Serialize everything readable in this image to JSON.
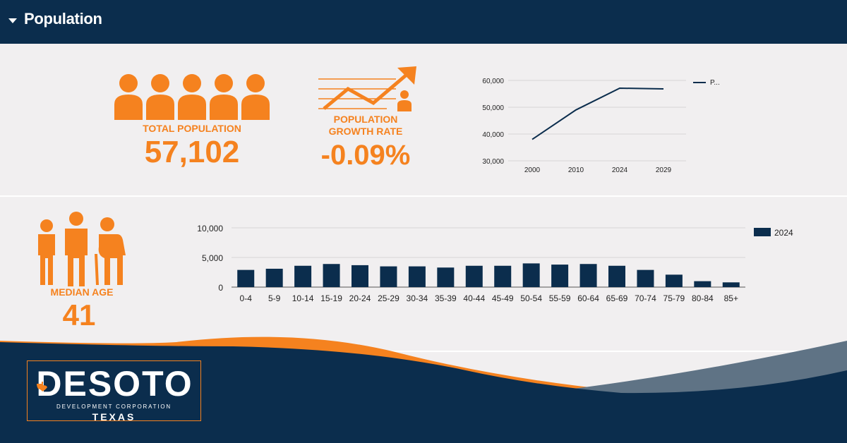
{
  "header": {
    "title": "Population"
  },
  "stats": {
    "total_population": {
      "label": "TOTAL POPULATION",
      "value": "57,102"
    },
    "growth_rate": {
      "label_line1": "POPULATION",
      "label_line2": "GROWTH RATE",
      "value": "-0.09%"
    },
    "median_age": {
      "label": "MEDIAN AGE",
      "value": "41"
    }
  },
  "colors": {
    "navy": "#0b2d4d",
    "orange": "#f5821f",
    "panel": "#f1eff0"
  },
  "icons": [
    "people-group-icon",
    "growth-trend-icon",
    "age-figures-icon",
    "dropdown-caret-icon",
    "texas-star-icon"
  ],
  "logo": {
    "word": "DESOTO",
    "sub": "DEVELOPMENT CORPORATION",
    "state": "TEXAS"
  },
  "chart_data": [
    {
      "type": "line",
      "x": [
        "2000",
        "2010",
        "2024",
        "2029"
      ],
      "series": [
        {
          "name": "P...",
          "values": [
            38000,
            49000,
            57102,
            56850
          ]
        }
      ],
      "yticks": [
        "30,000",
        "40,000",
        "50,000",
        "60,000"
      ],
      "ylim": [
        30000,
        60000
      ],
      "grid": true,
      "legend": "top-right"
    },
    {
      "type": "bar",
      "categories": [
        "0-4",
        "5-9",
        "10-14",
        "15-19",
        "20-24",
        "25-29",
        "30-34",
        "35-39",
        "40-44",
        "45-49",
        "50-54",
        "55-59",
        "60-64",
        "65-69",
        "70-74",
        "75-79",
        "80-84",
        "85+"
      ],
      "series": [
        {
          "name": "2024",
          "values": [
            2900,
            3100,
            3600,
            3900,
            3700,
            3500,
            3500,
            3300,
            3600,
            3600,
            4000,
            3800,
            3900,
            3600,
            2900,
            2100,
            1000,
            800
          ]
        }
      ],
      "yticks": [
        "0",
        "5,000",
        "10,000"
      ],
      "ylim": [
        0,
        10000
      ],
      "grid": true,
      "legend": "top-right"
    }
  ]
}
